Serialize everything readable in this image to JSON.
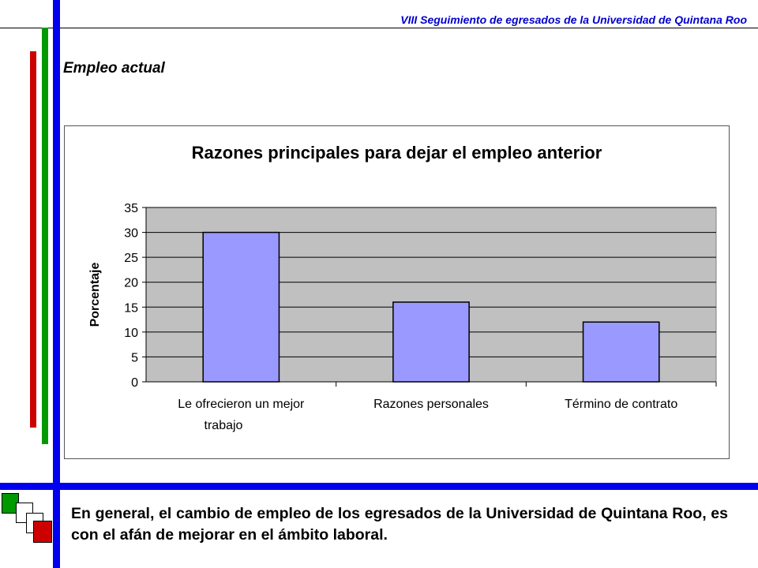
{
  "header": {
    "title": "VIII Seguimiento de egresados de la Universidad de Quintana Roo"
  },
  "section": {
    "heading": "Empleo actual"
  },
  "colors": {
    "blue": "#0000ee",
    "green": "#009900",
    "red": "#cc0000",
    "bar_fill": "#9999ff",
    "plot_bg": "#c0c0c0"
  },
  "chart_data": {
    "type": "bar",
    "title": "Razones principales para dejar el empleo anterior",
    "ylabel": "Porcentaje",
    "xlabel": "",
    "categories": [
      [
        "Le ofrecieron un mejor",
        "trabajo"
      ],
      [
        "Razones personales"
      ],
      [
        "Término de contrato"
      ]
    ],
    "values": [
      30,
      16,
      12
    ],
    "ylim": [
      0,
      35
    ],
    "yticks": [
      "0",
      "5",
      "10",
      "15",
      "20",
      "25",
      "30",
      "35"
    ],
    "grid": true,
    "legend": "none"
  },
  "conclusion": {
    "text": "En general, el cambio de empleo de los egresados de la Universidad de Quintana Roo, es con el afán de mejorar en el ámbito laboral."
  }
}
